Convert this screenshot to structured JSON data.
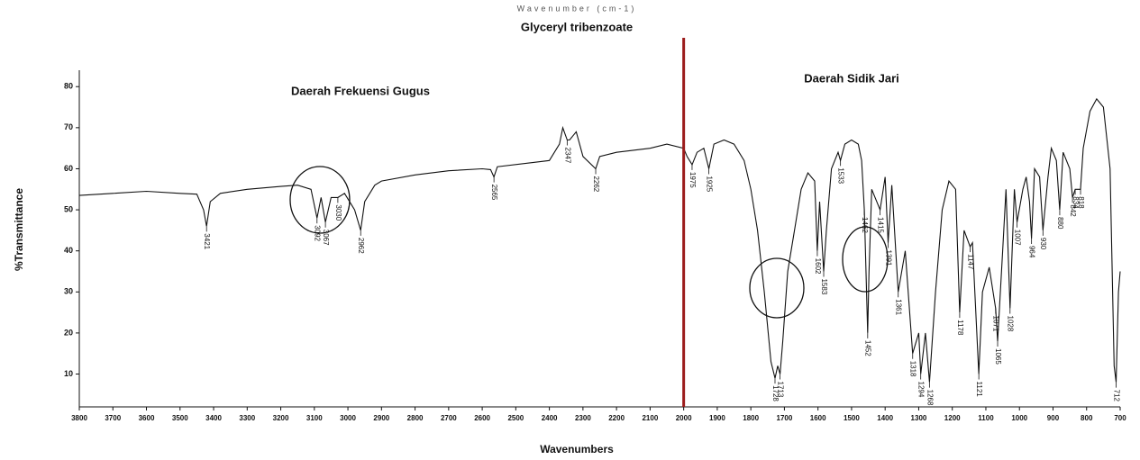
{
  "chart_data": {
    "type": "line",
    "top_label": "Wavenumber (cm-1)",
    "title": "Glyceryl tribenzoate",
    "annotations": [
      "Daerah Frekuensi Gugus",
      "Daerah Sidik Jari"
    ],
    "ylabel": "%Transmittance",
    "xlabel": "Wavenumbers",
    "color": "#111111",
    "divider": {
      "x": 2000,
      "color": "#9b1b1b"
    },
    "xlim": [
      3800,
      700
    ],
    "ylim": [
      2,
      84
    ],
    "xticks": [
      3800,
      3700,
      3600,
      3500,
      3400,
      3300,
      3200,
      3100,
      3000,
      2900,
      2800,
      2700,
      2600,
      2500,
      2400,
      2300,
      2200,
      2100,
      2000,
      1900,
      1800,
      1700,
      1600,
      1500,
      1400,
      1300,
      1200,
      1100,
      1000,
      900,
      800,
      700
    ],
    "yticks": [
      10,
      20,
      30,
      40,
      50,
      60,
      70,
      80
    ],
    "x": [
      3800,
      3700,
      3600,
      3500,
      3450,
      3430,
      3421,
      3410,
      3380,
      3300,
      3200,
      3150,
      3110,
      3092,
      3080,
      3067,
      3050,
      3030,
      3010,
      2980,
      2962,
      2950,
      2920,
      2900,
      2800,
      2700,
      2600,
      2575,
      2565,
      2555,
      2450,
      2400,
      2370,
      2360,
      2347,
      2340,
      2320,
      2300,
      2262,
      2250,
      2200,
      2100,
      2050,
      2000,
      1990,
      1975,
      1960,
      1940,
      1925,
      1910,
      1880,
      1850,
      1820,
      1800,
      1780,
      1760,
      1740,
      1728,
      1720,
      1713,
      1705,
      1690,
      1670,
      1650,
      1630,
      1610,
      1602,
      1595,
      1583,
      1575,
      1560,
      1540,
      1533,
      1520,
      1500,
      1480,
      1470,
      1462,
      1452,
      1448,
      1440,
      1415,
      1400,
      1391,
      1380,
      1361,
      1340,
      1318,
      1300,
      1294,
      1280,
      1268,
      1250,
      1230,
      1210,
      1190,
      1178,
      1165,
      1147,
      1140,
      1121,
      1110,
      1090,
      1071,
      1065,
      1050,
      1040,
      1028,
      1015,
      1007,
      990,
      980,
      970,
      964,
      955,
      940,
      930,
      915,
      905,
      890,
      880,
      870,
      850,
      842,
      834,
      818,
      810,
      790,
      770,
      750,
      730,
      718,
      712,
      705,
      700
    ],
    "values": [
      53.5,
      54,
      54.5,
      54,
      53.8,
      50,
      46,
      52,
      54,
      55,
      55.7,
      56,
      55,
      48,
      53,
      47,
      53,
      53,
      54,
      50,
      45,
      52,
      56,
      57,
      58.5,
      59.5,
      60,
      59.8,
      58,
      60.5,
      61.5,
      62,
      66,
      70,
      67,
      67,
      69,
      63,
      60,
      63,
      64,
      65,
      66,
      65,
      63,
      61,
      64,
      65,
      60,
      66,
      67,
      66,
      62,
      55,
      45,
      30,
      13,
      9,
      12,
      10,
      18,
      35,
      45,
      55,
      59,
      57,
      40,
      52,
      35,
      45,
      60,
      64,
      62,
      66,
      67,
      66,
      62,
      50,
      20,
      35,
      55,
      50,
      58,
      42,
      56,
      30,
      40,
      15,
      20,
      10,
      20,
      8,
      30,
      50,
      57,
      55,
      25,
      45,
      41,
      42,
      10,
      30,
      36,
      26,
      18,
      40,
      55,
      26,
      55,
      47,
      55,
      58,
      52,
      43,
      60,
      58,
      45,
      58,
      65,
      62,
      50,
      64,
      60,
      53,
      55,
      55,
      65,
      74,
      77,
      75,
      60,
      12,
      8,
      30,
      35
    ],
    "peaks": [
      {
        "x": 3421,
        "y": 46
      },
      {
        "x": 3092,
        "y": 48
      },
      {
        "x": 3067,
        "y": 47
      },
      {
        "x": 3030,
        "y": 53
      },
      {
        "x": 2962,
        "y": 45
      },
      {
        "x": 2565,
        "y": 58
      },
      {
        "x": 2347,
        "y": 67
      },
      {
        "x": 2262,
        "y": 60
      },
      {
        "x": 1975,
        "y": 61
      },
      {
        "x": 1925,
        "y": 60
      },
      {
        "x": 1728,
        "y": 9
      },
      {
        "x": 1713,
        "y": 10
      },
      {
        "x": 1602,
        "y": 40
      },
      {
        "x": 1583,
        "y": 35
      },
      {
        "x": 1533,
        "y": 62
      },
      {
        "x": 1462,
        "y": 50
      },
      {
        "x": 1452,
        "y": 20
      },
      {
        "x": 1415,
        "y": 50
      },
      {
        "x": 1391,
        "y": 42
      },
      {
        "x": 1361,
        "y": 30
      },
      {
        "x": 1318,
        "y": 15
      },
      {
        "x": 1294,
        "y": 10
      },
      {
        "x": 1268,
        "y": 8
      },
      {
        "x": 1178,
        "y": 25
      },
      {
        "x": 1147,
        "y": 41
      },
      {
        "x": 1121,
        "y": 10
      },
      {
        "x": 1071,
        "y": 26
      },
      {
        "x": 1065,
        "y": 18
      },
      {
        "x": 1028,
        "y": 26
      },
      {
        "x": 1007,
        "y": 47
      },
      {
        "x": 964,
        "y": 43
      },
      {
        "x": 930,
        "y": 45
      },
      {
        "x": 880,
        "y": 50
      },
      {
        "x": 842,
        "y": 53
      },
      {
        "x": 834,
        "y": 55
      },
      {
        "x": 818,
        "y": 55
      },
      {
        "x": 712,
        "y": 8
      }
    ]
  }
}
